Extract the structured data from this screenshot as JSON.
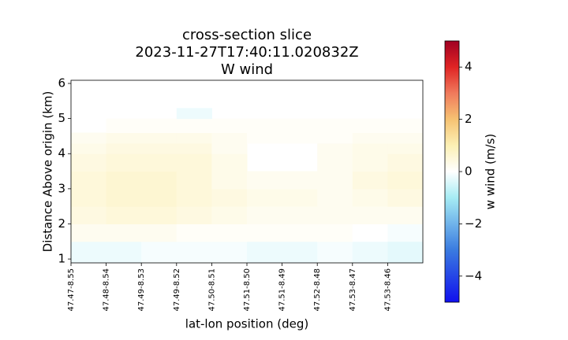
{
  "chart_data": {
    "type": "heatmap",
    "title": "cross-section slice",
    "subtitle": "2023-11-27T17:40:11.020832Z",
    "subtitle2": "W wind",
    "xlabel": "lat-lon position (deg)",
    "ylabel": "Distance Above origin (km)",
    "colorbar_label": "w wind (m/s)",
    "xlim": [
      0,
      10
    ],
    "xticks": [
      {
        "value": 0,
        "label": "47.47-8.55"
      },
      {
        "value": 1,
        "label": "47.48-8.54"
      },
      {
        "value": 2,
        "label": "47.49-8.53"
      },
      {
        "value": 3,
        "label": "47.49-8.52"
      },
      {
        "value": 4,
        "label": "47.50-8.51"
      },
      {
        "value": 5,
        "label": "47.51-8.50"
      },
      {
        "value": 6,
        "label": "47.51-8.49"
      },
      {
        "value": 7,
        "label": "47.52-8.48"
      },
      {
        "value": 8,
        "label": "47.53-8.47"
      },
      {
        "value": 9,
        "label": "47.53-8.46"
      }
    ],
    "ylim": [
      0.89,
      6.09
    ],
    "yticks": [
      1,
      2,
      3,
      4,
      5,
      6
    ],
    "x_edges": [
      0,
      1,
      2,
      3,
      4,
      5,
      6,
      7,
      8,
      9,
      10
    ],
    "y_edges": [
      0.89,
      1.5,
      2,
      2.5,
      3,
      3.5,
      4,
      4.3,
      4.6,
      5,
      5.3
    ],
    "z": [
      [
        -0.2,
        -0.2,
        -0.1,
        -0.1,
        -0.1,
        -0.2,
        -0.2,
        -0.1,
        -0.2,
        -0.3
      ],
      [
        0.2,
        0.2,
        0.2,
        0.1,
        0.1,
        0.1,
        0.1,
        0.1,
        0.0,
        -0.1
      ],
      [
        0.4,
        0.5,
        0.5,
        0.4,
        0.3,
        0.2,
        0.2,
        0.2,
        0.2,
        0.2
      ],
      [
        0.5,
        0.6,
        0.6,
        0.5,
        0.4,
        0.3,
        0.3,
        0.2,
        0.3,
        0.4
      ],
      [
        0.5,
        0.6,
        0.6,
        0.5,
        0.3,
        0.2,
        0.2,
        0.2,
        0.4,
        0.5
      ],
      [
        0.4,
        0.5,
        0.5,
        0.5,
        0.3,
        null,
        null,
        0.2,
        0.3,
        0.4
      ],
      [
        0.3,
        0.4,
        0.4,
        0.4,
        0.2,
        null,
        null,
        0.2,
        0.3,
        0.3
      ],
      [
        0.2,
        0.3,
        0.3,
        0.3,
        0.2,
        0.1,
        0.1,
        0.1,
        0.2,
        0.2
      ],
      [
        null,
        0.1,
        0.1,
        0.1,
        0.1,
        0.1,
        0.1,
        0.1,
        0.1,
        0.1
      ],
      [
        null,
        null,
        null,
        -0.2,
        null,
        null,
        null,
        null,
        null,
        null
      ]
    ],
    "clim": [
      -5,
      5
    ],
    "cticks": [
      {
        "value": -4,
        "label": "−4"
      },
      {
        "value": -2,
        "label": "−2"
      },
      0,
      2,
      4
    ],
    "colorscale": [
      [
        -5,
        "#1010ee"
      ],
      [
        -3,
        "#3a7be0"
      ],
      [
        -1,
        "#a6ecf4"
      ],
      [
        0,
        "#ffffff"
      ],
      [
        1,
        "#fcf0b4"
      ],
      [
        2,
        "#f6c272"
      ],
      [
        3,
        "#f07a5c"
      ],
      [
        4,
        "#e02424"
      ],
      [
        5,
        "#a00022"
      ]
    ]
  }
}
